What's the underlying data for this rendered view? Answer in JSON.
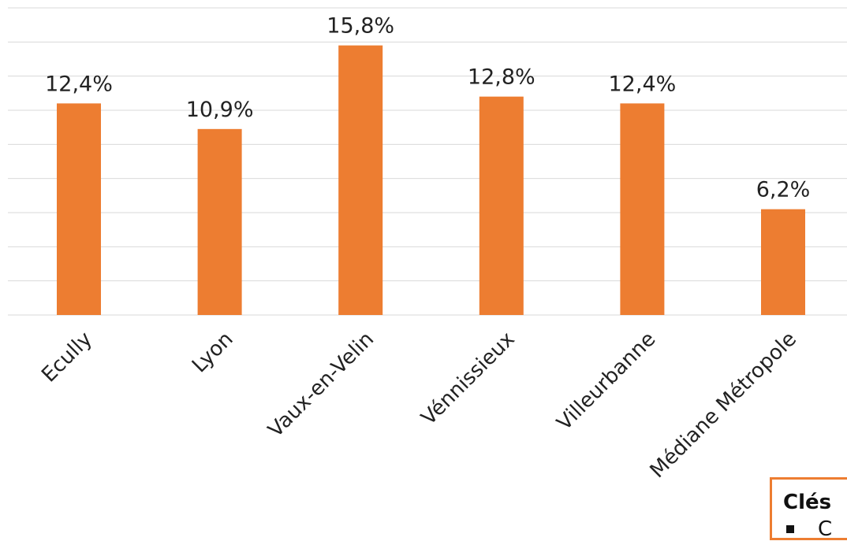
{
  "chart_data": {
    "type": "bar",
    "categories": [
      "Ecully",
      "Lyon",
      "Vaux-en-Velin",
      "Vénnissieux",
      "Villeurbanne",
      "Médiane Métropole"
    ],
    "values": [
      12.4,
      10.9,
      15.8,
      12.8,
      12.4,
      6.2
    ],
    "data_labels": [
      "12,4%",
      "10,9%",
      "15,8%",
      "12,8%",
      "12,4%",
      "6,2%"
    ],
    "ylim": [
      0,
      18
    ],
    "grid": true,
    "bar_color": "#ed7d31"
  },
  "key_box": {
    "title": "Clés",
    "item": "C"
  }
}
